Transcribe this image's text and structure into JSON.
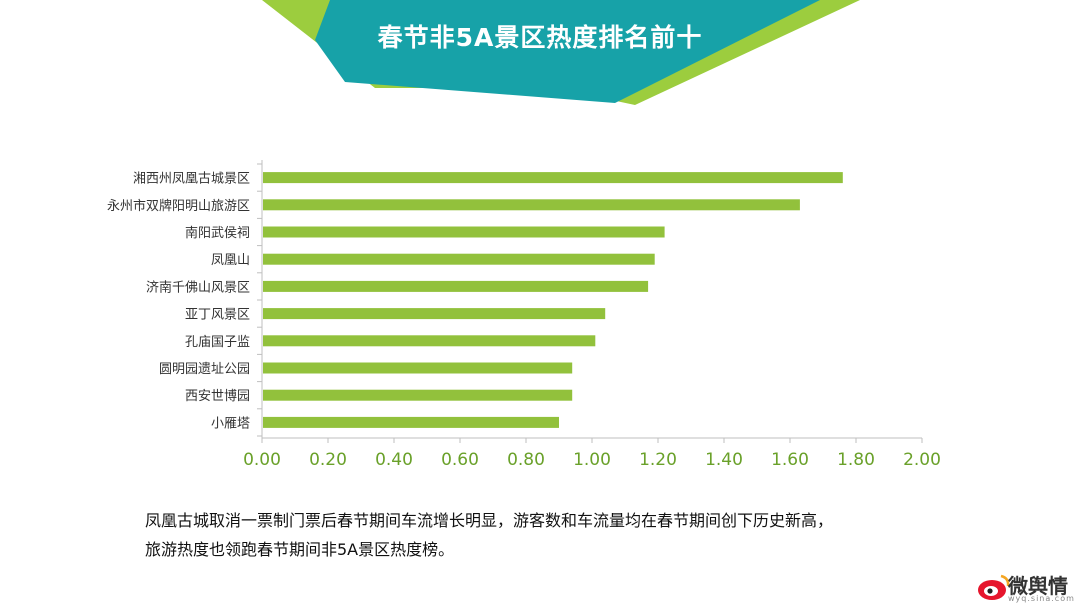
{
  "title": "春节非5A景区热度排名前十",
  "caption": {
    "line1": "凤凰古城取消一票制门票后春节期间车流增长明显，游客数和车流量均在春节期间创下历史新高，",
    "line2": "旅游热度也领跑春节期间非5A景区热度榜。"
  },
  "logo": {
    "text": "微舆情",
    "url": "wyq.sina.com"
  },
  "colors": {
    "bar": "#92c13c",
    "banner_teal": "#17a2a8",
    "banner_green": "#9ccd3e",
    "tick": "#6aa12a"
  },
  "chart_data": {
    "type": "bar",
    "orientation": "horizontal",
    "categories": [
      "湘西州凤凰古城景区",
      "永州市双牌阳明山旅游区",
      "南阳武侯祠",
      "凤凰山",
      "济南千佛山风景区",
      "亚丁风景区",
      "孔庙国子监",
      "圆明园遗址公园",
      "西安世博园",
      "小雁塔"
    ],
    "values": [
      1.76,
      1.63,
      1.22,
      1.19,
      1.17,
      1.04,
      1.01,
      0.94,
      0.94,
      0.9
    ],
    "xlim": [
      0,
      2
    ],
    "ticks": [
      "0.00",
      "0.20",
      "0.40",
      "0.60",
      "0.80",
      "1.00",
      "1.20",
      "1.40",
      "1.60",
      "1.80",
      "2.00"
    ],
    "tick_values": [
      0,
      0.2,
      0.4,
      0.6,
      0.8,
      1.0,
      1.2,
      1.4,
      1.6,
      1.8,
      2.0
    ],
    "grid": false
  }
}
